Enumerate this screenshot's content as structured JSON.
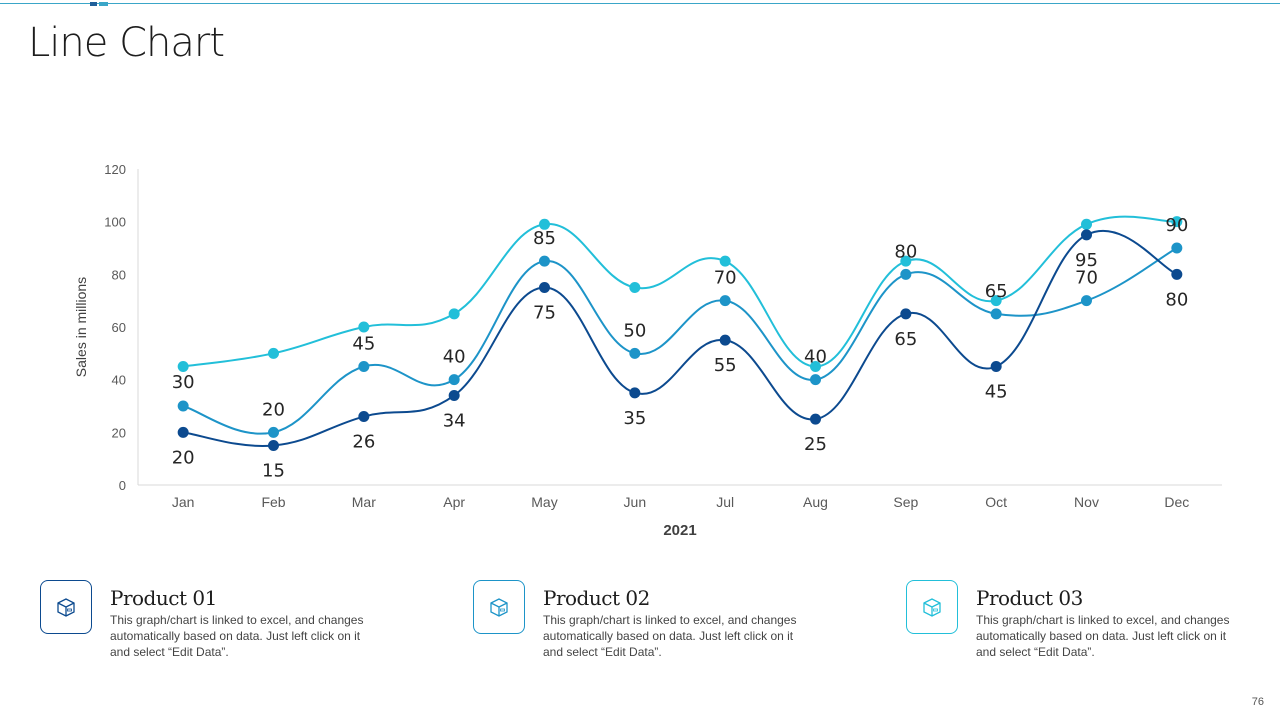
{
  "slide": {
    "title": "Line Chart",
    "page_number": "76"
  },
  "colors": {
    "accent": "#3aa6c8",
    "series1": "#0c4a8f",
    "series2": "#1d94c8",
    "series3": "#22bfd9"
  },
  "legend": [
    {
      "name": "Product 01",
      "description": "This graph/chart is linked to excel, and changes automatically based on data. Just left click on it and select “Edit Data”.",
      "icon": "box-icon"
    },
    {
      "name": "Product 02",
      "description": "This graph/chart is linked to excel, and changes automatically based on data. Just left click on it and select “Edit Data”.",
      "icon": "box-icon"
    },
    {
      "name": "Product 03",
      "description": "This graph/chart is linked to excel, and changes automatically based on data. Just left click on it and select “Edit Data”.",
      "icon": "box-icon"
    }
  ],
  "chart_data": {
    "type": "line",
    "title": "",
    "xlabel": "2021",
    "ylabel": "Sales in millions",
    "ylim": [
      0,
      120
    ],
    "yticks": [
      0,
      20,
      40,
      60,
      80,
      100,
      120
    ],
    "categories": [
      "Jan",
      "Feb",
      "Mar",
      "Apr",
      "May",
      "Jun",
      "Jul",
      "Aug",
      "Sep",
      "Oct",
      "Nov",
      "Dec"
    ],
    "smooth": true,
    "series": [
      {
        "name": "Product 01",
        "values": [
          20,
          15,
          26,
          34,
          75,
          35,
          55,
          25,
          65,
          45,
          95,
          80
        ],
        "labels": [
          "20",
          "15",
          "26",
          "34",
          "75",
          "35",
          "55",
          "25",
          "65",
          "45",
          "95",
          "80"
        ]
      },
      {
        "name": "Product 02",
        "values": [
          30,
          20,
          45,
          40,
          85,
          50,
          70,
          40,
          80,
          65,
          70,
          90
        ],
        "labels": [
          "30",
          "20",
          "45",
          "40",
          "85",
          "50",
          "70",
          "40",
          "80",
          "65",
          "70",
          "90"
        ]
      },
      {
        "name": "Product 03",
        "values": [
          45,
          50,
          60,
          65,
          99,
          75,
          85,
          45,
          85,
          70,
          99,
          100
        ],
        "labels": []
      }
    ]
  }
}
